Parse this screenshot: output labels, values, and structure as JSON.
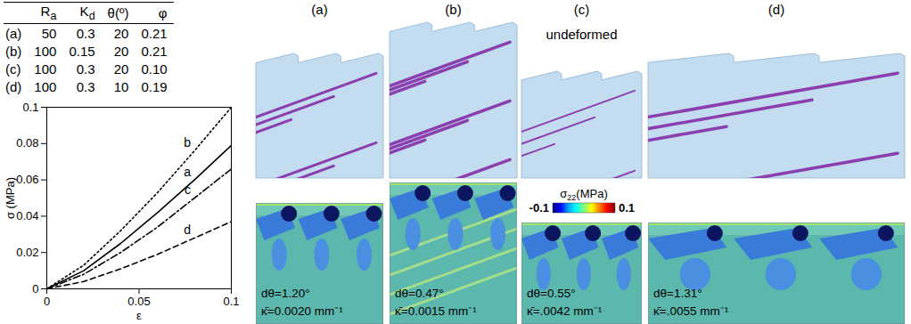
{
  "table": {
    "header": [
      "",
      {
        "base": "R",
        "sub": "a"
      },
      {
        "base": "K",
        "sub": "d"
      },
      "θ(º)",
      "φ"
    ],
    "rows": [
      [
        "(a)",
        "50",
        "0.3",
        "20",
        "0.21"
      ],
      [
        "(b)",
        "100",
        "0.15",
        "20",
        "0.21"
      ],
      [
        "(c)",
        "100",
        "0.3",
        "20",
        "0.10"
      ],
      [
        "(d)",
        "100",
        "0.3",
        "10",
        "0.19"
      ]
    ]
  },
  "chart_data": {
    "type": "line",
    "xlabel": "ε",
    "ylabel": "σ (MPa)",
    "x": [
      0,
      0.02,
      0.04,
      0.06,
      0.08,
      0.1
    ],
    "series": [
      {
        "name": "b",
        "color": "#000000",
        "line_style": "dotted",
        "values": [
          0,
          0.013,
          0.032,
          0.053,
          0.076,
          0.1
        ]
      },
      {
        "name": "a",
        "color": "#000000",
        "line_style": "solid",
        "values": [
          0,
          0.01,
          0.025,
          0.042,
          0.06,
          0.079
        ]
      },
      {
        "name": "c",
        "color": "#000000",
        "line_style": "dashdot",
        "values": [
          0,
          0.008,
          0.02,
          0.034,
          0.05,
          0.066
        ]
      },
      {
        "name": "d",
        "color": "#000000",
        "line_style": "dashed",
        "values": [
          0,
          0.004,
          0.011,
          0.019,
          0.028,
          0.037
        ]
      }
    ],
    "xlim": [
      0,
      0.1
    ],
    "xticks": [
      0,
      0.05,
      0.1
    ],
    "ylim": [
      0,
      0.1
    ],
    "yticks": [
      0,
      0.02,
      0.04,
      0.06,
      0.08,
      0.1
    ]
  },
  "panels": [
    {
      "label": "(a)",
      "dtheta": "dθ=1.20°",
      "kappa": "κ̄=0.0020 mm⁻¹"
    },
    {
      "label": "(b)",
      "dtheta": "dθ=0.47°",
      "kappa": "κ̄=0.0015 mm⁻¹"
    },
    {
      "label": "(c)",
      "dtheta": "dθ=0.55°",
      "kappa": "κ̄=.0042 mm⁻¹"
    },
    {
      "label": "(d)",
      "dtheta": "dθ=1.31°",
      "kappa": "κ̄=.0055 mm⁻¹"
    }
  ],
  "undeformed_label": "undeformed",
  "colorbar": {
    "title": {
      "base": "σ",
      "sub": "22",
      "suffix": "(MPa)"
    },
    "range": [
      -0.1,
      0.1
    ],
    "ticks": [
      -0.1,
      0.1
    ]
  }
}
